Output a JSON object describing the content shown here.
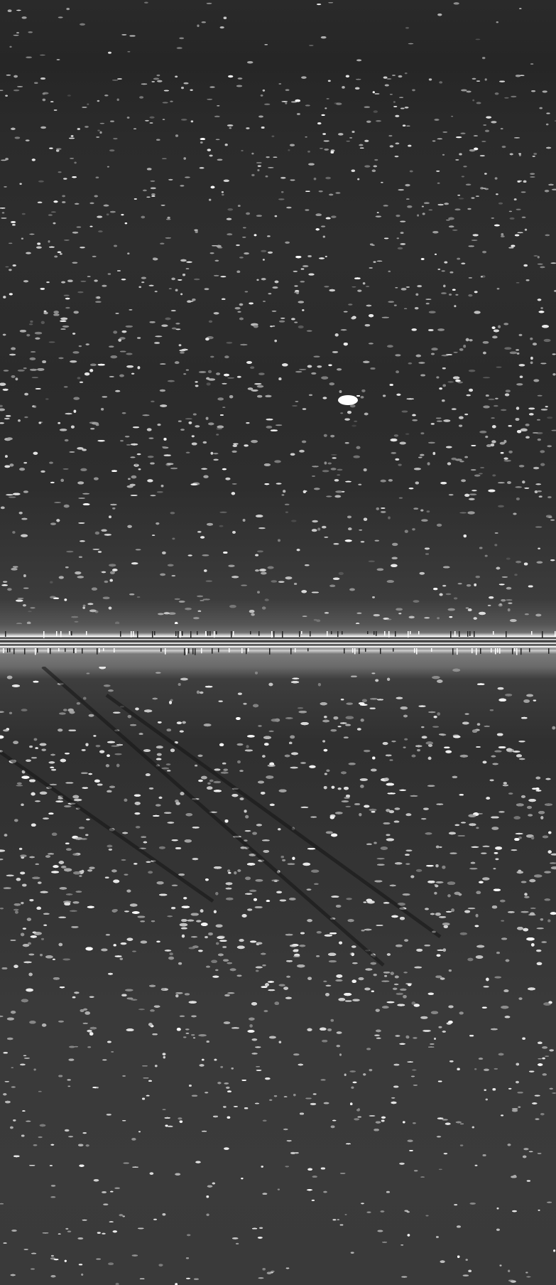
{
  "image": {
    "kind": "side-scan sonar record",
    "palette": {
      "background_dark": "#262626",
      "speckle": "#f0f0f0",
      "nadir_line": "#ffffff"
    }
  }
}
